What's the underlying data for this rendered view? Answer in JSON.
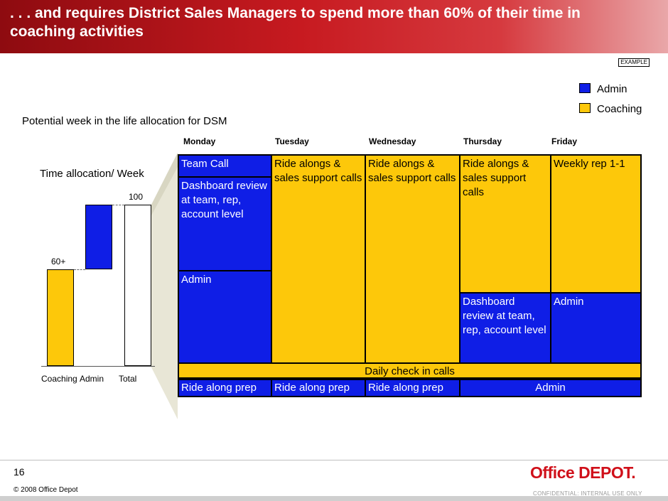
{
  "header": {
    "title": ". . . and requires District Sales Managers to spend more than 60% of their time in coaching activities"
  },
  "example_tag": "EXAMPLE",
  "legend": [
    {
      "label": "Admin",
      "color": "#0f1ee6"
    },
    {
      "label": "Coaching",
      "color": "#fdc80a"
    }
  ],
  "subtitle": "Potential week in the life allocation for DSM",
  "days": [
    "Monday",
    "Tuesday",
    "Wednesday",
    "Thursday",
    "Friday"
  ],
  "schedule": {
    "mon_team_call": "Team Call",
    "mon_dashboard": "Dashboard review at team, rep, account level",
    "mon_admin": "Admin",
    "tue_ride": "Ride alongs & sales support calls",
    "wed_ride": "Ride alongs & sales support calls",
    "thu_ride": "Ride alongs & sales support calls",
    "thu_dashboard": "Dashboard review at team, rep, account level",
    "fri_weekly": "Weekly rep 1-1",
    "fri_admin": "Admin",
    "daily_check": "Daily check in calls",
    "mon_prep": "Ride along prep",
    "tue_prep": "Ride along prep",
    "wed_prep": "Ride along prep",
    "thu_fri_admin": "Admin"
  },
  "chart_data": {
    "type": "bar",
    "title": "Time allocation/ Week",
    "categories": [
      "Coaching",
      "Admin",
      "Total"
    ],
    "values": [
      60,
      40,
      100
    ],
    "data_labels": [
      "60+",
      "",
      "100"
    ],
    "ylim": [
      0,
      100
    ]
  },
  "footer": {
    "page_number": "16",
    "copyright": "© 2008 Office Depot",
    "confidential": "CONFIDENTIAL: INTERNAL USE ONLY",
    "logo_text": "Office DEPOT."
  }
}
